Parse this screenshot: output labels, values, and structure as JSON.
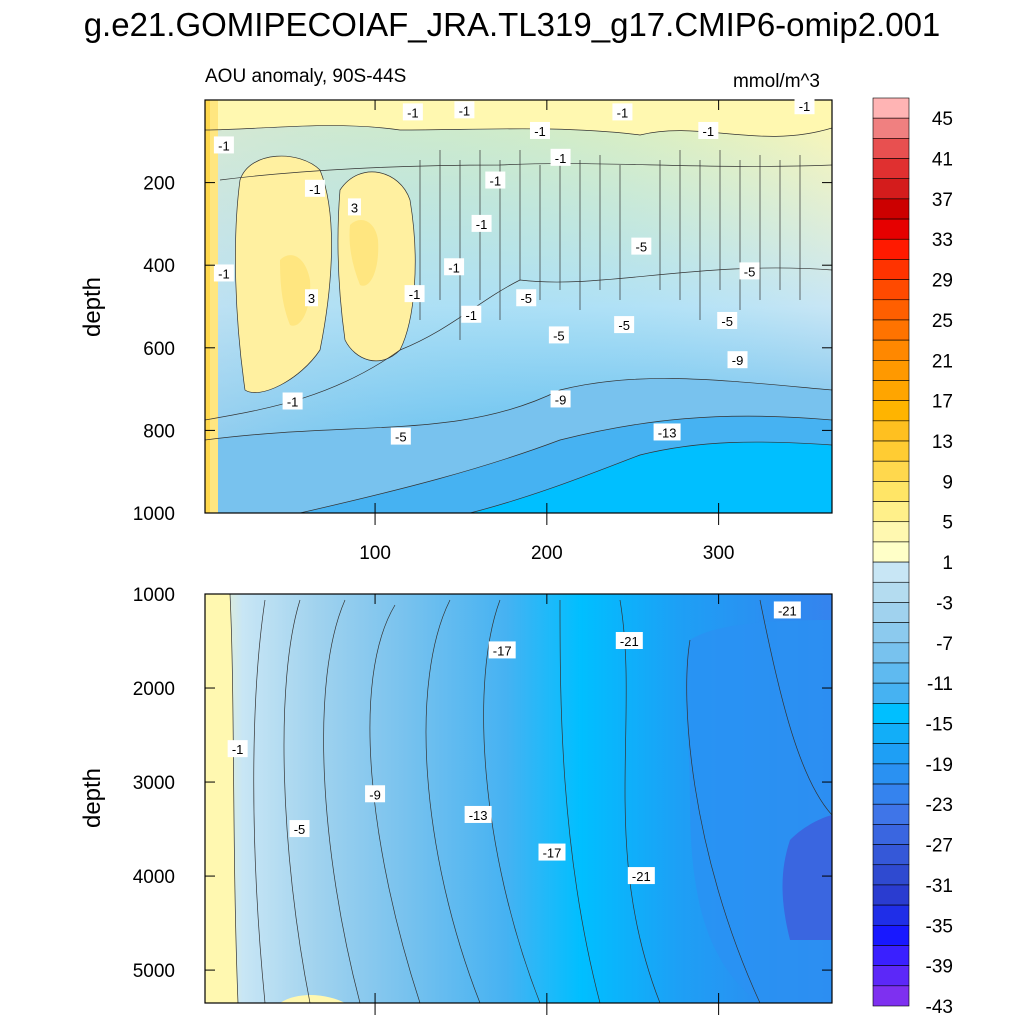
{
  "chart_data": {
    "type": "contour",
    "title": "g.e21.GOMIPECOIAF_JRA.TL319_g17.CMIP6-omip2.001",
    "subtitle": "AOU anomaly, 90S-44S",
    "units": "mmol/m^3",
    "colorbar": {
      "levels": [
        45,
        43,
        41,
        39,
        37,
        35,
        33,
        31,
        29,
        27,
        25,
        23,
        21,
        19,
        17,
        15,
        13,
        11,
        9,
        7,
        5,
        3,
        1,
        -1,
        -3,
        -5,
        -7,
        -9,
        -11,
        -13,
        -15,
        -17,
        -19,
        -21,
        -23,
        -25,
        -27,
        -29,
        -31,
        -33,
        -35,
        -37,
        -39,
        -41,
        -43,
        -45
      ],
      "labels": [
        "45",
        "41",
        "37",
        "33",
        "29",
        "25",
        "21",
        "17",
        "13",
        "9",
        "5",
        "1",
        "-3",
        "-7",
        "-11",
        "-15",
        "-19",
        "-23",
        "-27",
        "-31",
        "-35",
        "-39",
        "-43"
      ],
      "colors": [
        "#ffb4b4",
        "#f08080",
        "#e85050",
        "#e03030",
        "#d41c1c",
        "#cc0000",
        "#e60000",
        "#ff1a00",
        "#ff3300",
        "#ff4a00",
        "#ff5f00",
        "#ff7300",
        "#ff8800",
        "#ff9900",
        "#ffa500",
        "#ffb400",
        "#ffc020",
        "#ffcc33",
        "#ffd84d",
        "#ffe566",
        "#fff08a",
        "#fff8b0",
        "#ffffc8",
        "#c8e6f5",
        "#b4dcf0",
        "#a0d2ee",
        "#8ccaee",
        "#78c2ee",
        "#5fbaf0",
        "#46b2f2",
        "#00bfff",
        "#12aef8",
        "#1e9ff5",
        "#2a91f2",
        "#3583ee",
        "#3f75e8",
        "#3a66e0",
        "#3558d8",
        "#2f4ad0",
        "#2a3cd0",
        "#1f2ee8",
        "#1818ff",
        "#3a20ff",
        "#5c28f8",
        "#7e30f0"
      ]
    },
    "panels": [
      {
        "name": "upper",
        "xlabel": "",
        "ylabel": "depth",
        "xlim": [
          1,
          366
        ],
        "ylim": [
          1000,
          0
        ],
        "x_ticks": [
          100,
          200,
          300
        ],
        "y_ticks": [
          200,
          400,
          600,
          800,
          1000
        ],
        "contour_labels": [
          {
            "text": "-1",
            "x": 12,
            "y": 110
          },
          {
            "text": "-1",
            "x": 12,
            "y": 420
          },
          {
            "text": "-1",
            "x": 65,
            "y": 215
          },
          {
            "text": "3",
            "x": 88,
            "y": 260
          },
          {
            "text": "3",
            "x": 63,
            "y": 480
          },
          {
            "text": "-1",
            "x": 123,
            "y": 470
          },
          {
            "text": "-1",
            "x": 122,
            "y": 30
          },
          {
            "text": "-1",
            "x": 152,
            "y": 25
          },
          {
            "text": "-1",
            "x": 146,
            "y": 405
          },
          {
            "text": "-1",
            "x": 156,
            "y": 520
          },
          {
            "text": "-1",
            "x": 162,
            "y": 300
          },
          {
            "text": "-1",
            "x": 170,
            "y": 195
          },
          {
            "text": "-1",
            "x": 196,
            "y": 75
          },
          {
            "text": "-1",
            "x": 208,
            "y": 140
          },
          {
            "text": "-5",
            "x": 188,
            "y": 480
          },
          {
            "text": "-1",
            "x": 244,
            "y": 30
          },
          {
            "text": "-1",
            "x": 294,
            "y": 75
          },
          {
            "text": "-1",
            "x": 350,
            "y": 15
          },
          {
            "text": "-5",
            "x": 255,
            "y": 355
          },
          {
            "text": "-5",
            "x": 318,
            "y": 415
          },
          {
            "text": "-5",
            "x": 207,
            "y": 570
          },
          {
            "text": "-5",
            "x": 245,
            "y": 545
          },
          {
            "text": "-5",
            "x": 305,
            "y": 535
          },
          {
            "text": "-9",
            "x": 311,
            "y": 630
          },
          {
            "text": "-9",
            "x": 208,
            "y": 725
          },
          {
            "text": "-13",
            "x": 270,
            "y": 805
          },
          {
            "text": "-1",
            "x": 52,
            "y": 730
          },
          {
            "text": "-5",
            "x": 115,
            "y": 815
          }
        ]
      },
      {
        "name": "lower",
        "xlabel": "",
        "ylabel": "depth",
        "xlim": [
          1,
          366
        ],
        "ylim": [
          5350,
          1000
        ],
        "x_ticks": [
          100,
          200,
          300
        ],
        "y_ticks": [
          1000,
          2000,
          3000,
          4000,
          5000
        ],
        "contour_labels": [
          {
            "text": "-1",
            "x": 20,
            "y": 2650
          },
          {
            "text": "-5",
            "x": 56,
            "y": 3500
          },
          {
            "text": "-9",
            "x": 100,
            "y": 3130
          },
          {
            "text": "-13",
            "x": 160,
            "y": 3350
          },
          {
            "text": "-17",
            "x": 174,
            "y": 1600
          },
          {
            "text": "-17",
            "x": 203,
            "y": 3750
          },
          {
            "text": "-21",
            "x": 248,
            "y": 1500
          },
          {
            "text": "-21",
            "x": 255,
            "y": 4000
          },
          {
            "text": "-21",
            "x": 340,
            "y": 1175
          }
        ]
      }
    ]
  }
}
